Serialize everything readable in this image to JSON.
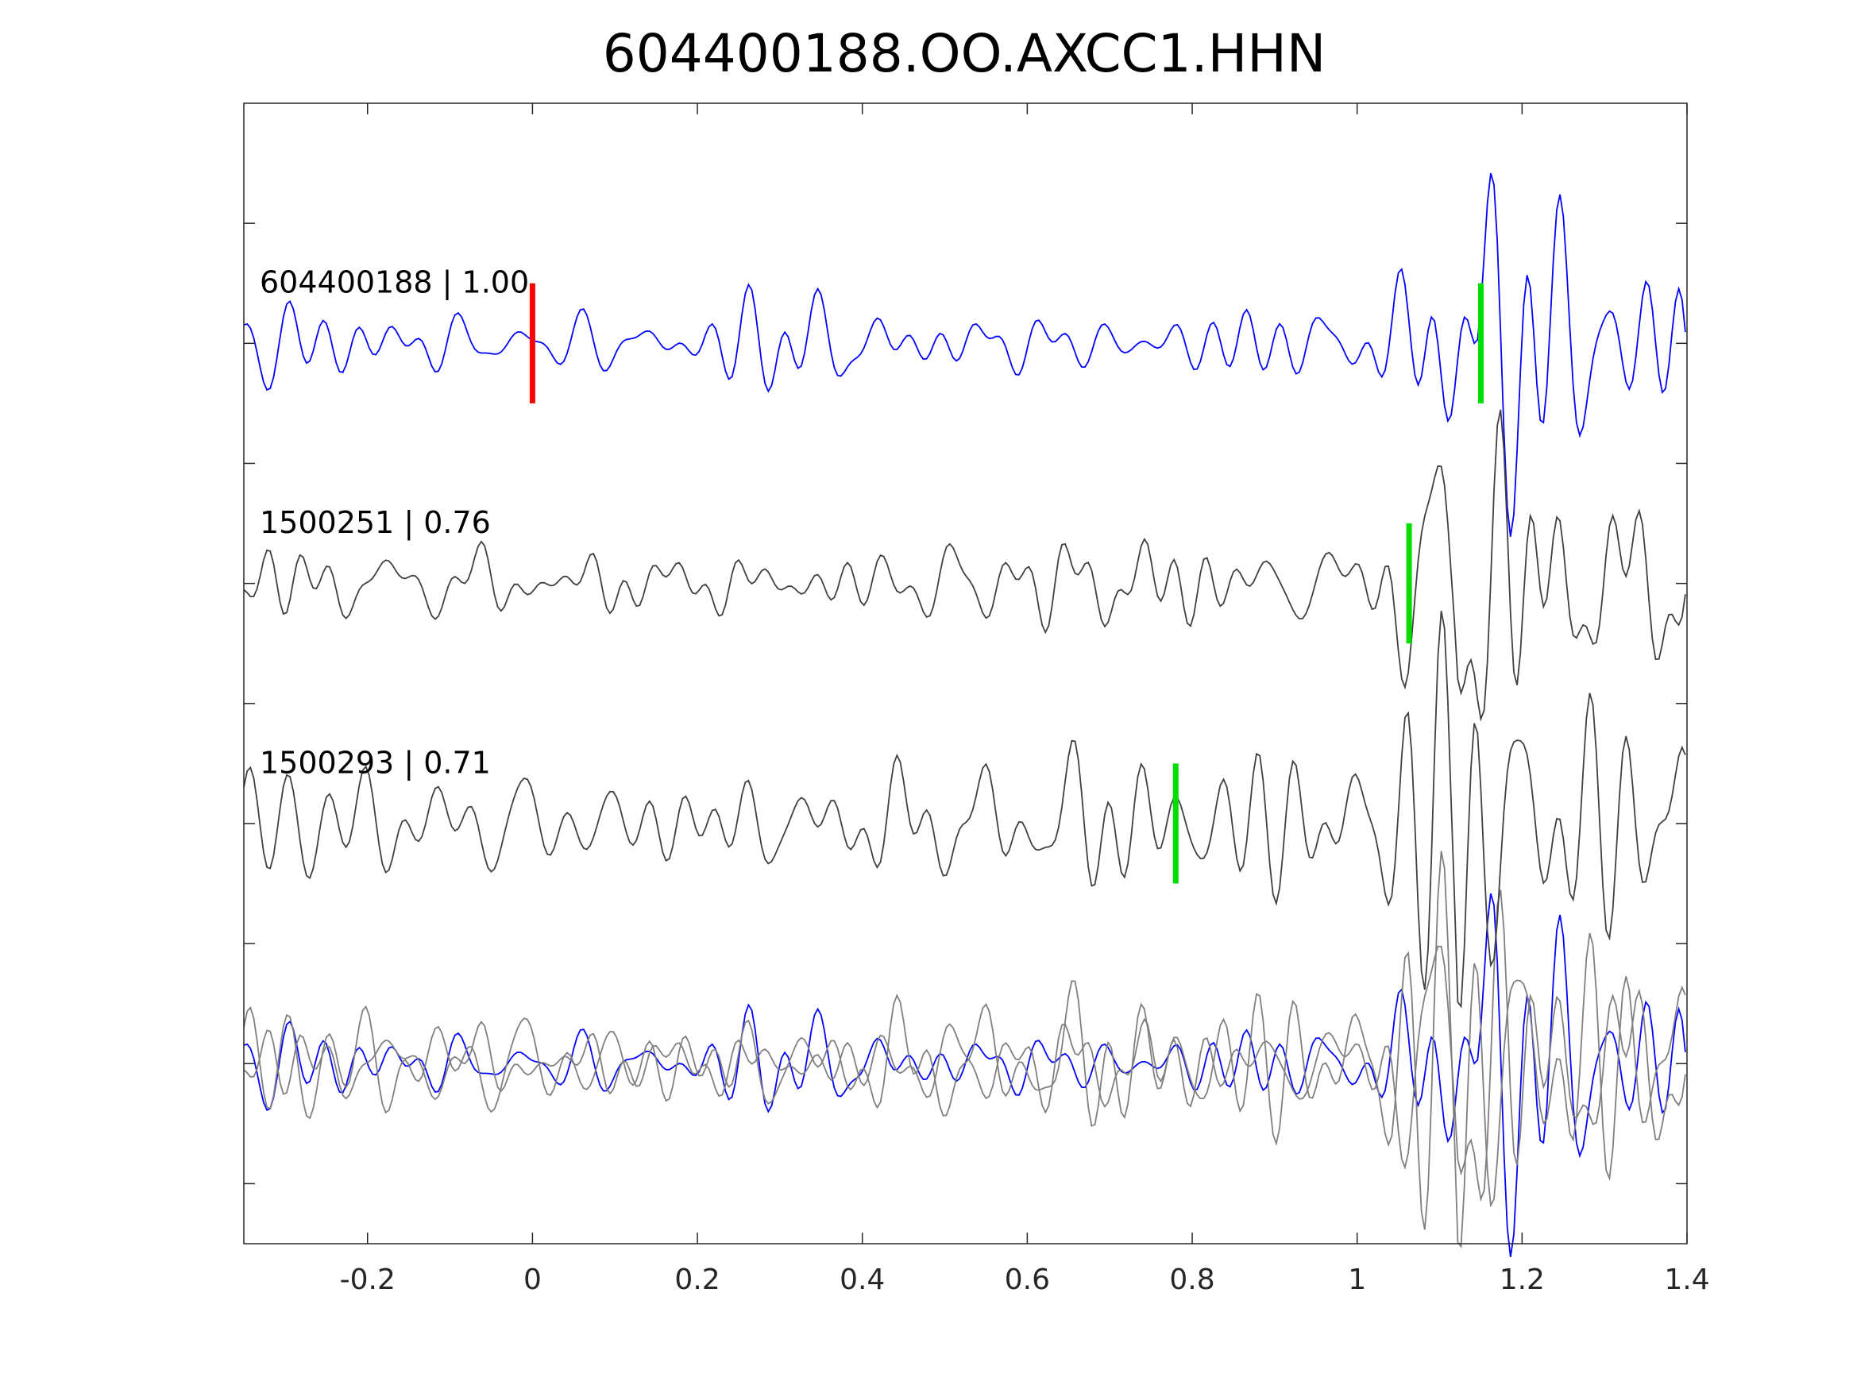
{
  "chart_data": {
    "type": "line",
    "title": "604400188.OO.AXCC1.HHN",
    "xlabel": "",
    "ylabel": "",
    "xlim": [
      -0.35,
      1.4
    ],
    "ylim": [
      -7.5,
      2
    ],
    "xticks": [
      -0.2,
      0,
      0.2,
      0.4,
      0.6,
      0.8,
      1,
      1.2,
      1.4
    ],
    "xtick_labels": [
      "-0.2",
      "0",
      "0.2",
      "0.4",
      "0.6",
      "0.8",
      "1",
      "1.2",
      "1.4"
    ],
    "yticks": [
      1,
      0,
      -1,
      -2,
      -3,
      -4,
      -5,
      -6,
      -7
    ],
    "grid": false,
    "series": [
      {
        "name": "604400188 | 1.00",
        "offset": 0,
        "color": "#0000ff",
        "seed": 3,
        "amp": 0.28,
        "peak_time": 1.15,
        "pick_red": 0,
        "pick_green": 1.15
      },
      {
        "name": "1500251 | 0.76",
        "offset": -2,
        "color": "#404040",
        "seed": 11,
        "amp": 0.35,
        "peak_time": 1.12,
        "pick_green": 1.063
      },
      {
        "name": "1500293 | 0.71",
        "offset": -4,
        "color": "#404040",
        "seed": 23,
        "amp": 0.45,
        "peak_time": 1.12,
        "pick_green": 0.78
      }
    ],
    "overlay": {
      "offset": -6,
      "gray_color": "#808080",
      "blue_color": "#0000ff"
    },
    "pick_colors": {
      "red": "#ff0000",
      "green": "#00dd00"
    }
  }
}
